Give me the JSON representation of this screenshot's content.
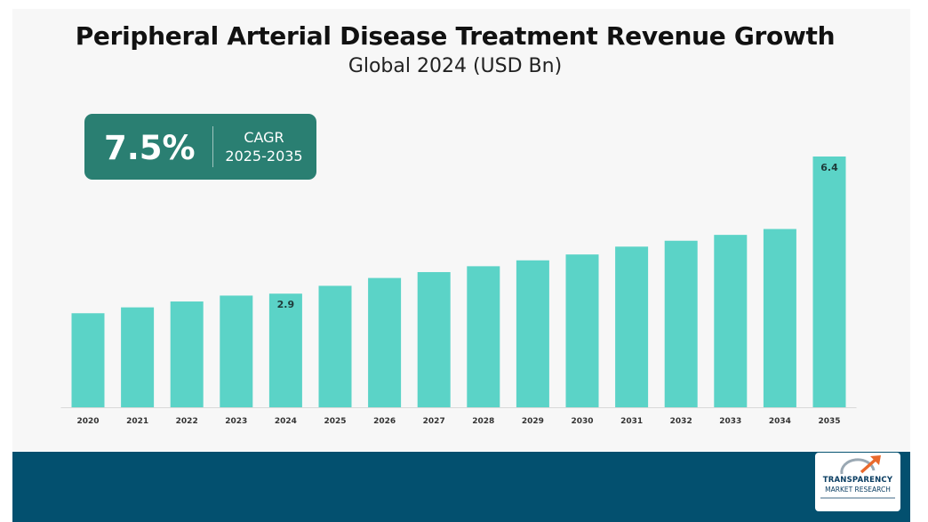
{
  "header": {
    "title": "Peripheral Arterial Disease Treatment Revenue Growth",
    "subtitle": "Global 2024 (USD Bn)"
  },
  "cagr": {
    "value": "7.5%",
    "label_line1": "CAGR",
    "label_line2": "2025-2035"
  },
  "logo": {
    "line1": "TRANSPARENCY",
    "line2": "MARKET RESEARCH"
  },
  "colors": {
    "bar": "#5bd3c7",
    "cagr_box": "#2a7f72",
    "footer": "#03506f"
  },
  "chart_data": {
    "type": "bar",
    "categories": [
      "2020",
      "2021",
      "2022",
      "2023",
      "2024",
      "2025",
      "2026",
      "2027",
      "2028",
      "2029",
      "2030",
      "2031",
      "2032",
      "2033",
      "2034",
      "2035"
    ],
    "values": [
      2.4,
      2.55,
      2.7,
      2.85,
      2.9,
      3.1,
      3.3,
      3.45,
      3.6,
      3.75,
      3.9,
      4.1,
      4.25,
      4.4,
      4.55,
      6.4
    ],
    "data_labels": [
      {
        "category": "2024",
        "text": "2.9"
      },
      {
        "category": "2035",
        "text": "6.4"
      }
    ],
    "title": "Peripheral Arterial Disease Treatment Revenue Growth",
    "subtitle": "Global 2024 (USD Bn)",
    "xlabel": "",
    "ylabel": "",
    "grid": false,
    "legend": "none"
  }
}
